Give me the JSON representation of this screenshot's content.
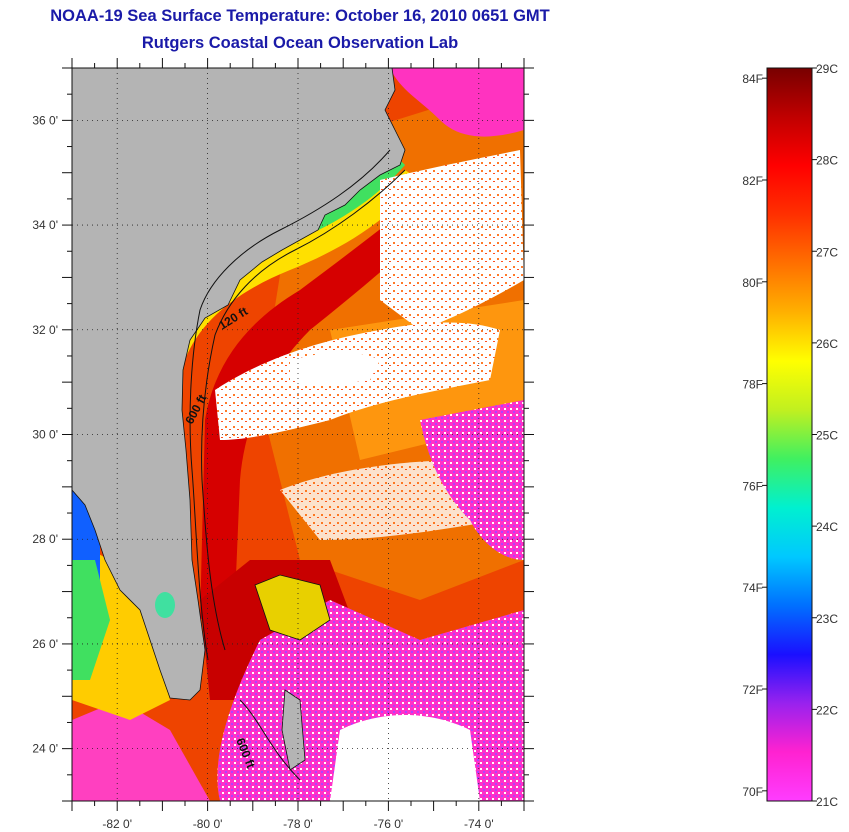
{
  "title": "NOAA-19 Sea Surface Temperature:  October 16, 2010 0651 GMT",
  "subtitle": "Rutgers Coastal Ocean Observation Lab",
  "map": {
    "lon_range": [
      -83,
      -73
    ],
    "lat_range": [
      23,
      37
    ],
    "lon_ticks": [
      "-82 0'",
      "-80 0'",
      "-78 0'",
      "-76 0'",
      "-74 0'"
    ],
    "lat_ticks": [
      "36 0'",
      "34 0'",
      "32 0'",
      "30 0'",
      "28 0'",
      "26 0'",
      "24 0'"
    ],
    "contour_labels": [
      "120 ft",
      "600 ft",
      "600 ft"
    ],
    "land_color": "#b4b4b4",
    "cloud_color": "#ffffff"
  },
  "colorbar": {
    "celsius_labels": [
      "29C",
      "28C",
      "27C",
      "26C",
      "25C",
      "24C",
      "23C",
      "22C",
      "21C"
    ],
    "fahrenheit_labels": [
      "84F",
      "82F",
      "80F",
      "78F",
      "76F",
      "74F",
      "72F",
      "70F"
    ],
    "colors": [
      "#ff3cff",
      "#ff22d0",
      "#9922ee",
      "#1a10ff",
      "#0070ff",
      "#00c8ff",
      "#00f0d0",
      "#40f060",
      "#c0f020",
      "#ffff00",
      "#ffb000",
      "#ff7000",
      "#ff3000",
      "#ff0000",
      "#c00000",
      "#780000"
    ]
  }
}
